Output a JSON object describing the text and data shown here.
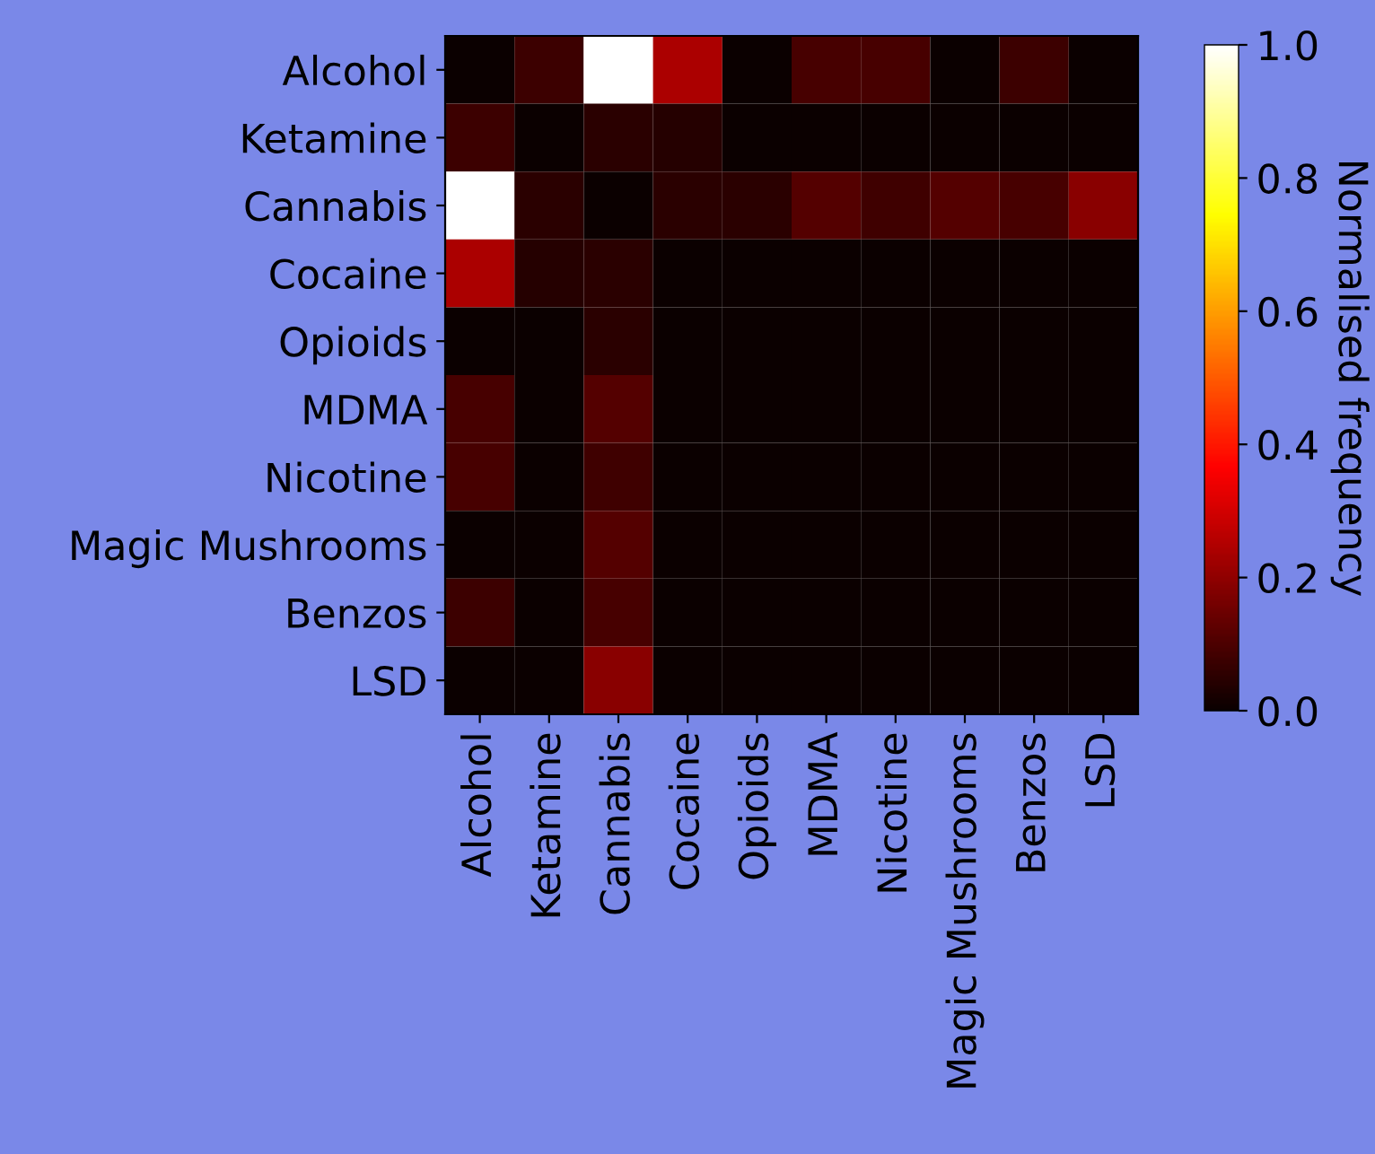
{
  "chart_data": {
    "type": "heatmap",
    "clabel": "Normalised frequency",
    "categories": [
      "Alcohol",
      "Ketamine",
      "Cannabis",
      "Cocaine",
      "Opioids",
      "MDMA",
      "Nicotine",
      "Magic Mushrooms",
      "Benzos",
      "LSD"
    ],
    "y_categories": [
      "Alcohol",
      "Ketamine",
      "Cannabis",
      "Cocaine",
      "Opioids",
      "MDMA",
      "Nicotine",
      "Magic Mushrooms",
      "Benzos",
      "LSD"
    ],
    "cells": [
      [
        0,
        0.075,
        1,
        0.24,
        0,
        0.09,
        0.09,
        0,
        0.075,
        0
      ],
      [
        0.075,
        0,
        0.05,
        0.04,
        0,
        0,
        0,
        0,
        0,
        0
      ],
      [
        1,
        0.05,
        0,
        0.05,
        0.05,
        0.11,
        0.08,
        0.11,
        0.09,
        0.19
      ],
      [
        0.24,
        0.04,
        0.05,
        0,
        0,
        0,
        0,
        0,
        0,
        0
      ],
      [
        0,
        0,
        0.05,
        0,
        0,
        0,
        0,
        0,
        0,
        0
      ],
      [
        0.09,
        0,
        0.11,
        0,
        0,
        0,
        0,
        0,
        0,
        0
      ],
      [
        0.09,
        0,
        0.08,
        0,
        0,
        0,
        0,
        0,
        0,
        0
      ],
      [
        0,
        0,
        0.11,
        0,
        0,
        0,
        0,
        0,
        0,
        0
      ],
      [
        0.075,
        0,
        0.09,
        0,
        0,
        0,
        0,
        0,
        0,
        0
      ],
      [
        0,
        0,
        0.19,
        0,
        0,
        0,
        0,
        0,
        0,
        0
      ]
    ],
    "clim": [
      0,
      1
    ],
    "cticks": [
      {
        "value": 0,
        "label": "0.0"
      },
      0.2,
      0.4,
      0.6,
      0.8,
      {
        "value": 1,
        "label": "1.0"
      }
    ]
  }
}
